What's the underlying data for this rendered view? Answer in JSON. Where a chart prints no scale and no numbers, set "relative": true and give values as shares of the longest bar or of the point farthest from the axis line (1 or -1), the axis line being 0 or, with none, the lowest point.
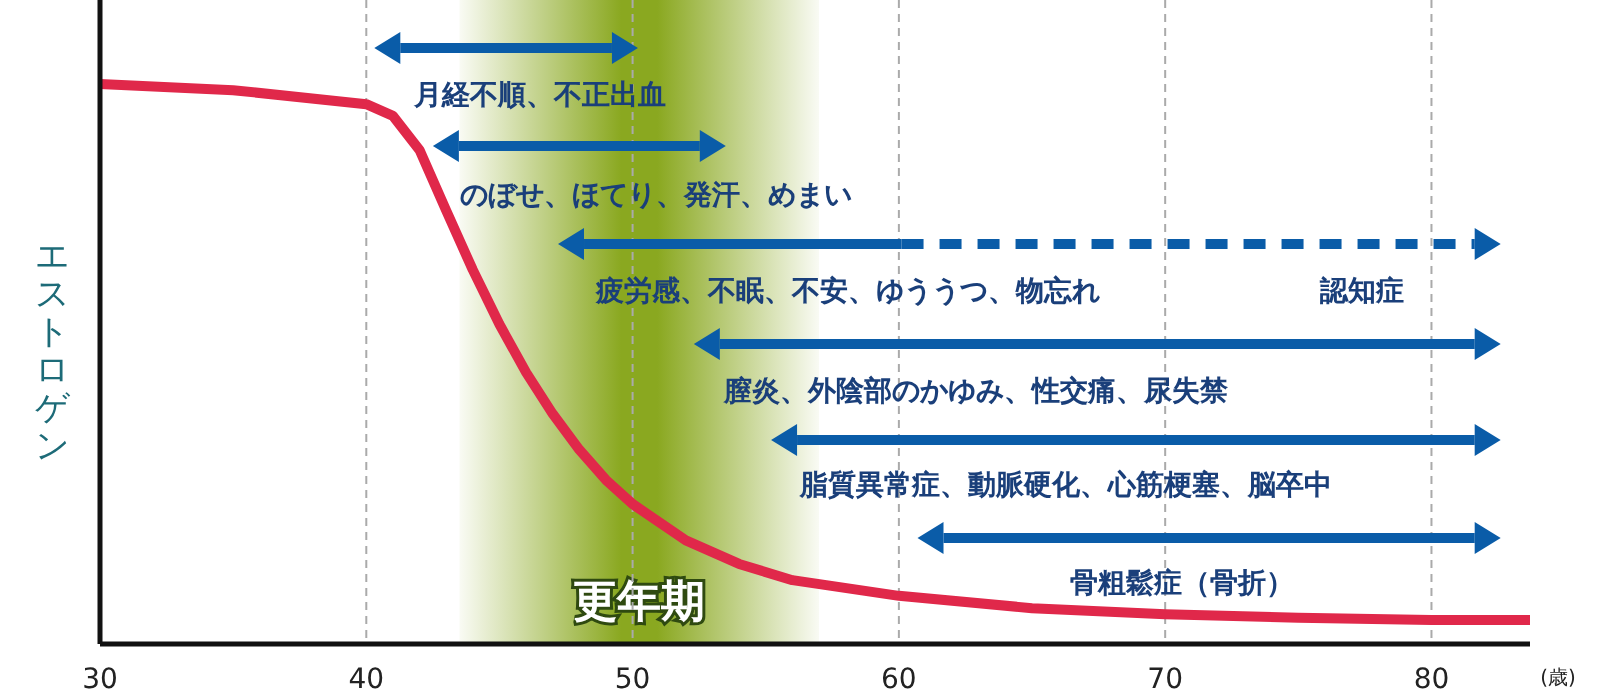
{
  "chart_data": {
    "type": "line",
    "relative": true,
    "xlabel": "(歳)",
    "ylabel": "エストロゲン",
    "xlim": [
      30,
      83.7
    ],
    "xticks": [
      30,
      40,
      50,
      60,
      70,
      80
    ],
    "grid": "x",
    "bands": [
      {
        "axis": "x",
        "from": 43.5,
        "to": 57,
        "label": "更年期",
        "color": "#8aa820"
      }
    ],
    "annotations": [
      "月経不順、不正出血",
      "のぼせ、ほてり、発汗、めまい",
      "疲労感、不眠、不安、ゆううつ、物忘れ",
      "認知症",
      "膣炎、外陰部のかゆみ、性交痛、尿失禁",
      "脂質異常症、動脈硬化、心筋梗塞、脳卒中",
      "骨粗鬆症（骨折）"
    ],
    "series": [
      {
        "color": "#e0284a",
        "x": [
          30,
          35,
          40,
          41,
          42,
          43,
          44,
          45,
          46,
          47,
          48,
          49,
          50,
          52,
          54,
          56,
          60,
          65,
          70,
          75,
          80,
          83.7
        ],
        "values": [
          1,
          0.989,
          0.964,
          0.943,
          0.882,
          0.774,
          0.668,
          0.571,
          0.485,
          0.411,
          0.347,
          0.293,
          0.25,
          0.185,
          0.143,
          0.114,
          0.086,
          0.064,
          0.053,
          0.047,
          0.043,
          0.043
        ]
      }
    ]
  }
}
